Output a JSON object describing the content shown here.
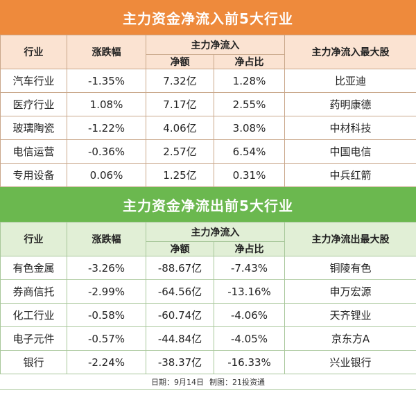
{
  "inflow": {
    "title": "主力资金净流入前5大行业",
    "headers": {
      "industry": "行业",
      "change": "涨跌幅",
      "main_net": "主力净流入",
      "net_amount": "净额",
      "net_ratio": "净占比",
      "top_stock": "主力净流入最大股"
    },
    "rows": [
      {
        "industry": "汽车行业",
        "change": "-1.35%",
        "net": "7.32亿",
        "ratio": "1.28%",
        "stock": "比亚迪"
      },
      {
        "industry": "医疗行业",
        "change": "1.08%",
        "net": "7.17亿",
        "ratio": "2.55%",
        "stock": "药明康德"
      },
      {
        "industry": "玻璃陶瓷",
        "change": "-1.22%",
        "net": "4.06亿",
        "ratio": "3.08%",
        "stock": "中材科技"
      },
      {
        "industry": "电信运营",
        "change": "-0.36%",
        "net": "2.57亿",
        "ratio": "6.54%",
        "stock": "中国电信"
      },
      {
        "industry": "专用设备",
        "change": "0.06%",
        "net": "1.25亿",
        "ratio": "0.31%",
        "stock": "中兵红箭"
      }
    ]
  },
  "outflow": {
    "title": "主力资金净流出前5大行业",
    "headers": {
      "industry": "行业",
      "change": "涨跌幅",
      "main_net": "主力净流入",
      "net_amount": "净额",
      "net_ratio": "净占比",
      "top_stock": "主力净流出最大股"
    },
    "rows": [
      {
        "industry": "有色金属",
        "change": "-3.26%",
        "net": "-88.67亿",
        "ratio": "-7.43%",
        "stock": "铜陵有色"
      },
      {
        "industry": "券商信托",
        "change": "-2.99%",
        "net": "-64.56亿",
        "ratio": "-13.16%",
        "stock": "申万宏源"
      },
      {
        "industry": "化工行业",
        "change": "-0.58%",
        "net": "-60.74亿",
        "ratio": "-4.06%",
        "stock": "天齐锂业"
      },
      {
        "industry": "电子元件",
        "change": "-0.57%",
        "net": "-44.84亿",
        "ratio": "-4.05%",
        "stock": "京东方A"
      },
      {
        "industry": "银行",
        "change": "-2.24%",
        "net": "-38.37亿",
        "ratio": "-16.33%",
        "stock": "兴业银行"
      }
    ]
  },
  "footer": {
    "date": "日期：9月14日",
    "maker": "制图：21投资通"
  },
  "colors": {
    "orange": "#ee8a3c",
    "green": "#6bb84f"
  }
}
